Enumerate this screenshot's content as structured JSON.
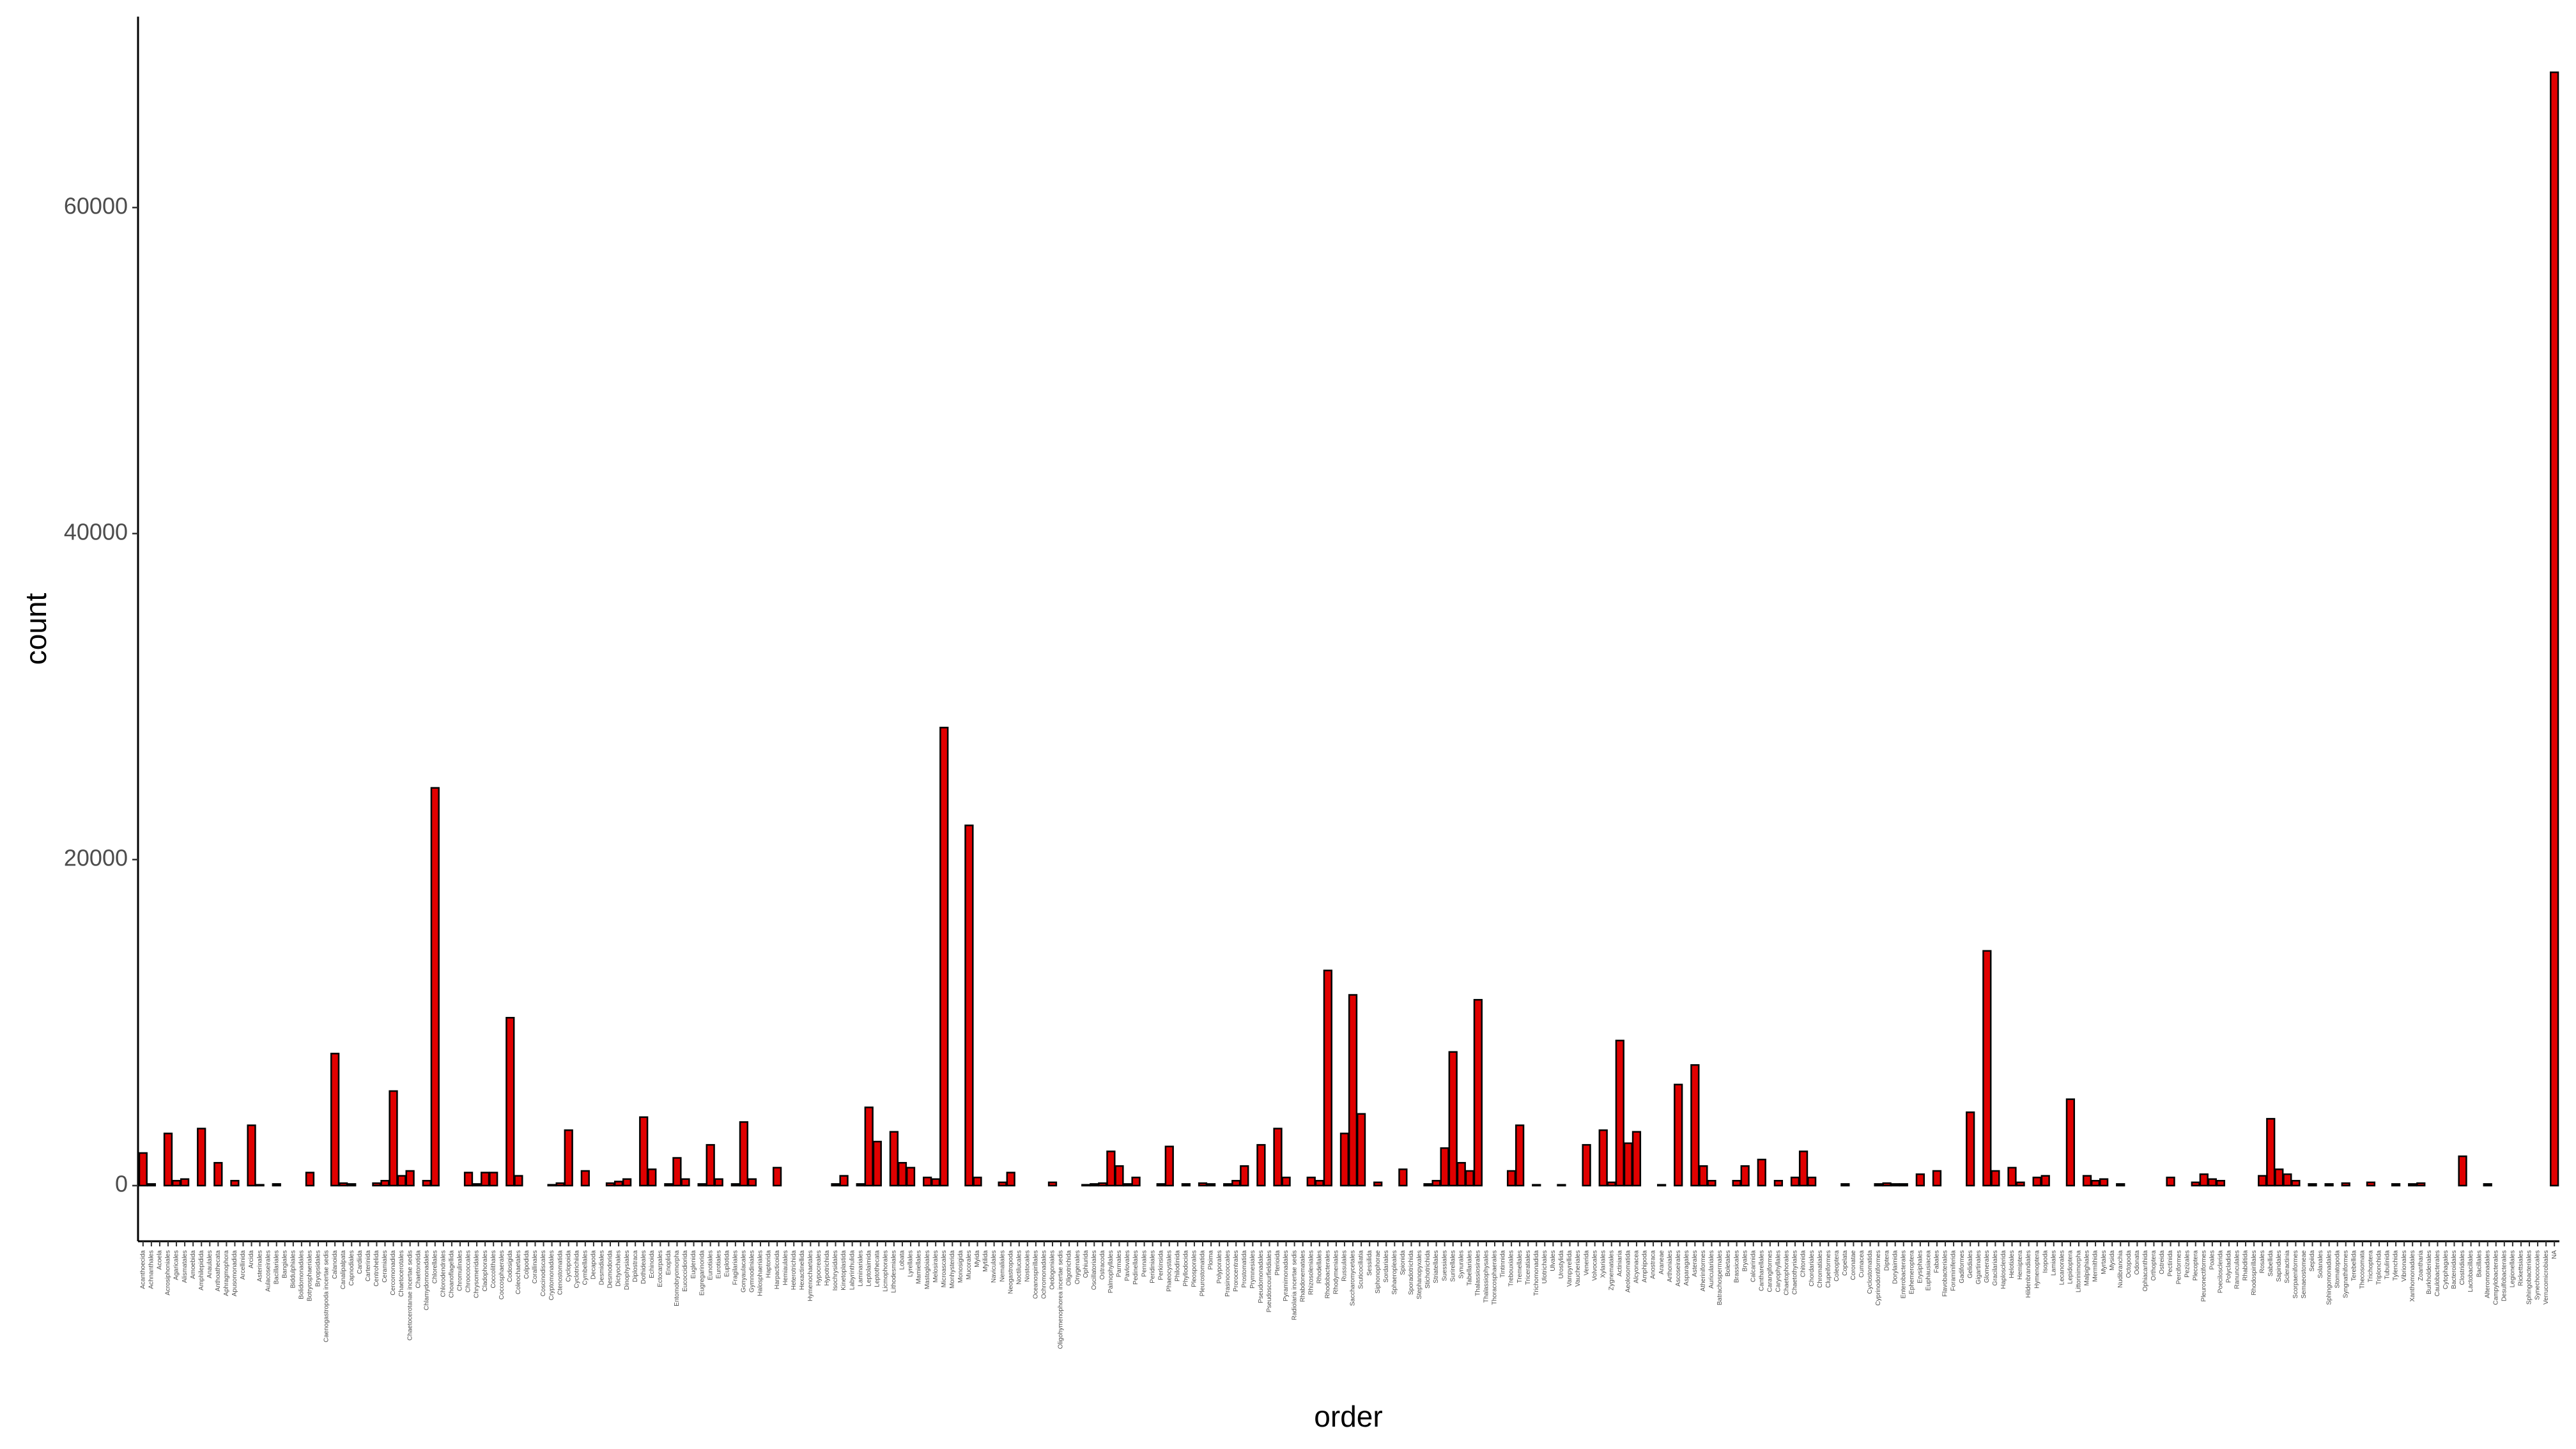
{
  "chart_data": {
    "type": "bar",
    "xlabel": "order",
    "ylabel": "count",
    "color": "#e00000",
    "edgecolor": "#000000",
    "ylim": [
      -3415,
      71715
    ],
    "yticks": [
      0,
      20000,
      40000,
      60000
    ],
    "grid": false,
    "categories": [
      "Acanthoecida",
      "Achnanthales",
      "Acoela",
      "Acrosiphoniales",
      "Agaricales",
      "Alismatales",
      "Amoebida",
      "Amphilepidida",
      "Anaulales",
      "Anthoathecata",
      "Aphragmophora",
      "Apusomonadida",
      "Arcellinida",
      "Arcida",
      "Asterinales",
      "Aulacoseirales",
      "Bacillariales",
      "Bangiales",
      "Biddulphiales",
      "Bolidomonadales",
      "Botryosphaeriales",
      "Bryopsidales",
      "Caenogastropoda incertae sedis",
      "Calanoida",
      "Canalipalpata",
      "Capnodiales",
      "Cardiida",
      "Carterinida",
      "Centrohelida",
      "Ceramiales",
      "Cercomonadida",
      "Chaetocerotales",
      "Chaetocerotanae incertae sedis",
      "Chaetonotida",
      "Chlamydomonadales",
      "Chlorellales",
      "Chlorodendrales",
      "Choanoflagellida",
      "Chromulinales",
      "Chroococcales",
      "Chrysomeridales",
      "Cladophorales",
      "Coccolithales",
      "Coccosphaerales",
      "Codosigida",
      "Coleochaetales",
      "Colpodida",
      "Corallinales",
      "Coscinodiscales",
      "Cryptomonadales",
      "Ctenostomatida",
      "Cyclopoida",
      "Cyclotrichiida",
      "Cymbellales",
      "Decapoda",
      "Desmidiales",
      "Desmodorida",
      "Dictyochales",
      "Dinophysiales",
      "Diplostraca",
      "Dothideales",
      "Echinoida",
      "Ectocarpales",
      "Enoplida",
      "Entomobryomorpha",
      "Eucoccidiorida",
      "Euglenida",
      "Eugregarinorida",
      "Eunotiales",
      "Eurotiales",
      "Euplotida",
      "Fragilariales",
      "Gonyaulacales",
      "Gymnodiniales",
      "Halosphaeriales",
      "Haptorida",
      "Harpacticoida",
      "Hemiaulales",
      "Heterotrichida",
      "Hexactinellida",
      "Hymenochaetales",
      "Hypocreales",
      "Hypotrichida",
      "Isochrysidales",
      "Kinetoplastida",
      "Labyrinthulida",
      "Laminariales",
      "Leptolaimida",
      "Leptothecata",
      "Licmophorales",
      "Lithodesmiales",
      "Lobata",
      "Lyrellales",
      "Mamiellales",
      "Mastogloiales",
      "Melosirales",
      "Microascales",
      "Monhysterida",
      "Monosigida",
      "Mucorales",
      "Myida",
      "Mytilida",
      "Naviculales",
      "Nemaliales",
      "Neogastropoda",
      "Noctilucales",
      "Nostocales",
      "Oceanospirillales",
      "Ochromonadales",
      "Oedogoniales",
      "Oligohymenophorea incertae sedis",
      "Oligotrichida",
      "Onygenales",
      "Ophiurida",
      "Oscillatoriales",
      "Ostracoda",
      "Palmophyllales",
      "Parmales",
      "Pavlovales",
      "Pedinellales",
      "Pennales",
      "Peridiniales",
      "Perkinsida",
      "Phaeocystales",
      "Philodinida",
      "Phyllodocida",
      "Pleosporales",
      "Pleurostomatida",
      "Ploima",
      "Polyporales",
      "Prasinococcales",
      "Prorocentrales",
      "Prostomatida",
      "Prymnesiales",
      "Pseudomonadales",
      "Pseudoscourfieldiales",
      "Pterioida",
      "Pyramimonadales",
      "Radiolaria incertae sedis",
      "Rhabdonematales",
      "Rhizosoleniales",
      "Rhodellales",
      "Rhodobacterales",
      "Rhodymeniales",
      "Russulales",
      "Saccharomycetales",
      "Scuticociliatia",
      "Sessilida",
      "Siphonophorae",
      "Sordariales",
      "Sphaeropleales",
      "Spionida",
      "Sporadotrichida",
      "Stephanopyxales",
      "Stichotrichida",
      "Striatellales",
      "Suessiales",
      "Surirellales",
      "Synurales",
      "Tabellariales",
      "Thalassiosirales",
      "Thalassiophysales",
      "Thoracosphaerales",
      "Tintinnida",
      "Trebouxiales",
      "Tremellales",
      "Triceratiales",
      "Trichomonadida",
      "Ulotrichales",
      "Ulvales",
      "Urostylida",
      "Vampyrellida",
      "Vaucheriales",
      "Venerida",
      "Volvocales",
      "Xylariales",
      "Zygnematales",
      "Actiniaria",
      "Aeolosomatida",
      "Alcyonacea",
      "Amphipoda",
      "Anostraca",
      "Araneae",
      "Arthoniales",
      "Ascoseirales",
      "Asparagales",
      "Asterales",
      "Atheriniformes",
      "Auriculariales",
      "Batrachospermales",
      "Boletales",
      "Brassicales",
      "Bryales",
      "Calcarinida",
      "Cantharellales",
      "Carangiformes",
      "Caryophyllales",
      "Chaetophorales",
      "Chaetothyriales",
      "Chitonida",
      "Chordariales",
      "Chromatiales",
      "Clupeiformes",
      "Coleoptera",
      "Copelata",
      "Coronatae",
      "Cumacea",
      "Cyclostomatida",
      "Cyprinodontiformes",
      "Diptera",
      "Dorylaimida",
      "Enterobacterales",
      "Ephemeroptera",
      "Erysiphales",
      "Euphausiacea",
      "Fabales",
      "Flavobacteriales",
      "Foraminiferida",
      "Gadiformes",
      "Gelidiales",
      "Gigartinales",
      "Glomerales",
      "Gracilariales",
      "Haplosclerida",
      "Helotiales",
      "Hemiptera",
      "Hildenbrandiales",
      "Hymenoptera",
      "Isopoda",
      "Lamiales",
      "Lecanorales",
      "Lepidoptera",
      "Littorinimorpha",
      "Malpighiales",
      "Mermithida",
      "Myrtales",
      "Mysida",
      "Nudibranchia",
      "Octopoda",
      "Odonata",
      "Ophiacanthida",
      "Orthoptera",
      "Ostreida",
      "Pectinida",
      "Perciformes",
      "Pezizales",
      "Plecoptera",
      "Pleuronectiformes",
      "Poales",
      "Poecilosclerida",
      "Polycladida",
      "Ranunculales",
      "Rhabditida",
      "Rhodospirillales",
      "Rosales",
      "Sabellida",
      "Sapindales",
      "Scleractinia",
      "Scorpaeniformes",
      "Semaeostomeae",
      "Sepiida",
      "Solanales",
      "Sphingomonadales",
      "Stomatopoda",
      "Syngnathiformes",
      "Terebellida",
      "Thecosomata",
      "Trichoptera",
      "Triplonchida",
      "Tubulinida",
      "Tylenchida",
      "Vibrionales",
      "Xanthomonadales",
      "Zoantharia",
      "Burkholderiales",
      "Caulobacterales",
      "Cytophagales",
      "Bacteroidales",
      "Clostridiales",
      "Lactobacillales",
      "Bacillales",
      "Alteromonadales",
      "Campylobacterales",
      "Desulfobacterales",
      "Legionellales",
      "Rickettsiales",
      "Sphingobacteriales",
      "Synechococcales",
      "Verrucomicrobiales",
      "NA"
    ],
    "values": [
      2000,
      100,
      0,
      3200,
      300,
      400,
      0,
      3500,
      0,
      1400,
      0,
      300,
      0,
      3700,
      50,
      0,
      100,
      0,
      0,
      0,
      800,
      0,
      0,
      8100,
      150,
      100,
      0,
      0,
      150,
      300,
      5800,
      600,
      900,
      0,
      300,
      24400,
      0,
      0,
      0,
      800,
      100,
      800,
      800,
      0,
      10300,
      600,
      0,
      0,
      0,
      50,
      150,
      3400,
      0,
      900,
      0,
      0,
      150,
      250,
      400,
      0,
      4200,
      1000,
      0,
      100,
      1700,
      400,
      0,
      100,
      2500,
      400,
      0,
      100,
      3900,
      400,
      0,
      0,
      1100,
      0,
      0,
      0,
      0,
      0,
      0,
      100,
      600,
      0,
      100,
      4800,
      2700,
      0,
      3300,
      1400,
      1100,
      0,
      500,
      400,
      28100,
      0,
      0,
      22100,
      500,
      0,
      0,
      200,
      800,
      0,
      0,
      0,
      0,
      200,
      0,
      0,
      0,
      50,
      100,
      150,
      2100,
      1200,
      100,
      500,
      0,
      0,
      100,
      2400,
      0,
      100,
      0,
      150,
      100,
      0,
      100,
      300,
      1200,
      0,
      2500,
      0,
      3500,
      500,
      0,
      0,
      500,
      300,
      13200,
      0,
      3200,
      11700,
      4400,
      0,
      200,
      0,
      0,
      1000,
      0,
      0,
      100,
      300,
      2300,
      8200,
      1400,
      900,
      11400,
      0,
      0,
      0,
      900,
      3700,
      0,
      50,
      0,
      0,
      50,
      0,
      0,
      2500,
      0,
      3400,
      200,
      8900,
      2600,
      3300,
      0,
      0,
      50,
      0,
      6200,
      0,
      7400,
      1200,
      300,
      0,
      0,
      300,
      1200,
      0,
      1600,
      0,
      300,
      0,
      500,
      2100,
      500,
      0,
      0,
      0,
      100,
      0,
      0,
      0,
      100,
      150,
      100,
      100,
      0,
      700,
      0,
      900,
      0,
      0,
      0,
      4500,
      0,
      14400,
      900,
      0,
      1100,
      200,
      0,
      500,
      600,
      0,
      0,
      5300,
      0,
      600,
      300,
      400,
      0,
      100,
      0,
      0,
      0,
      0,
      0,
      500,
      0,
      0,
      200,
      700,
      400,
      300,
      0,
      0,
      0,
      0,
      600,
      4100,
      1000,
      700,
      300,
      0,
      100,
      0,
      100,
      0,
      150,
      0,
      0,
      200,
      0,
      0,
      100,
      0,
      100,
      150,
      0,
      0,
      0,
      0,
      1800,
      0,
      0,
      100,
      0,
      0,
      0,
      0,
      0,
      0,
      0,
      68300
    ]
  }
}
